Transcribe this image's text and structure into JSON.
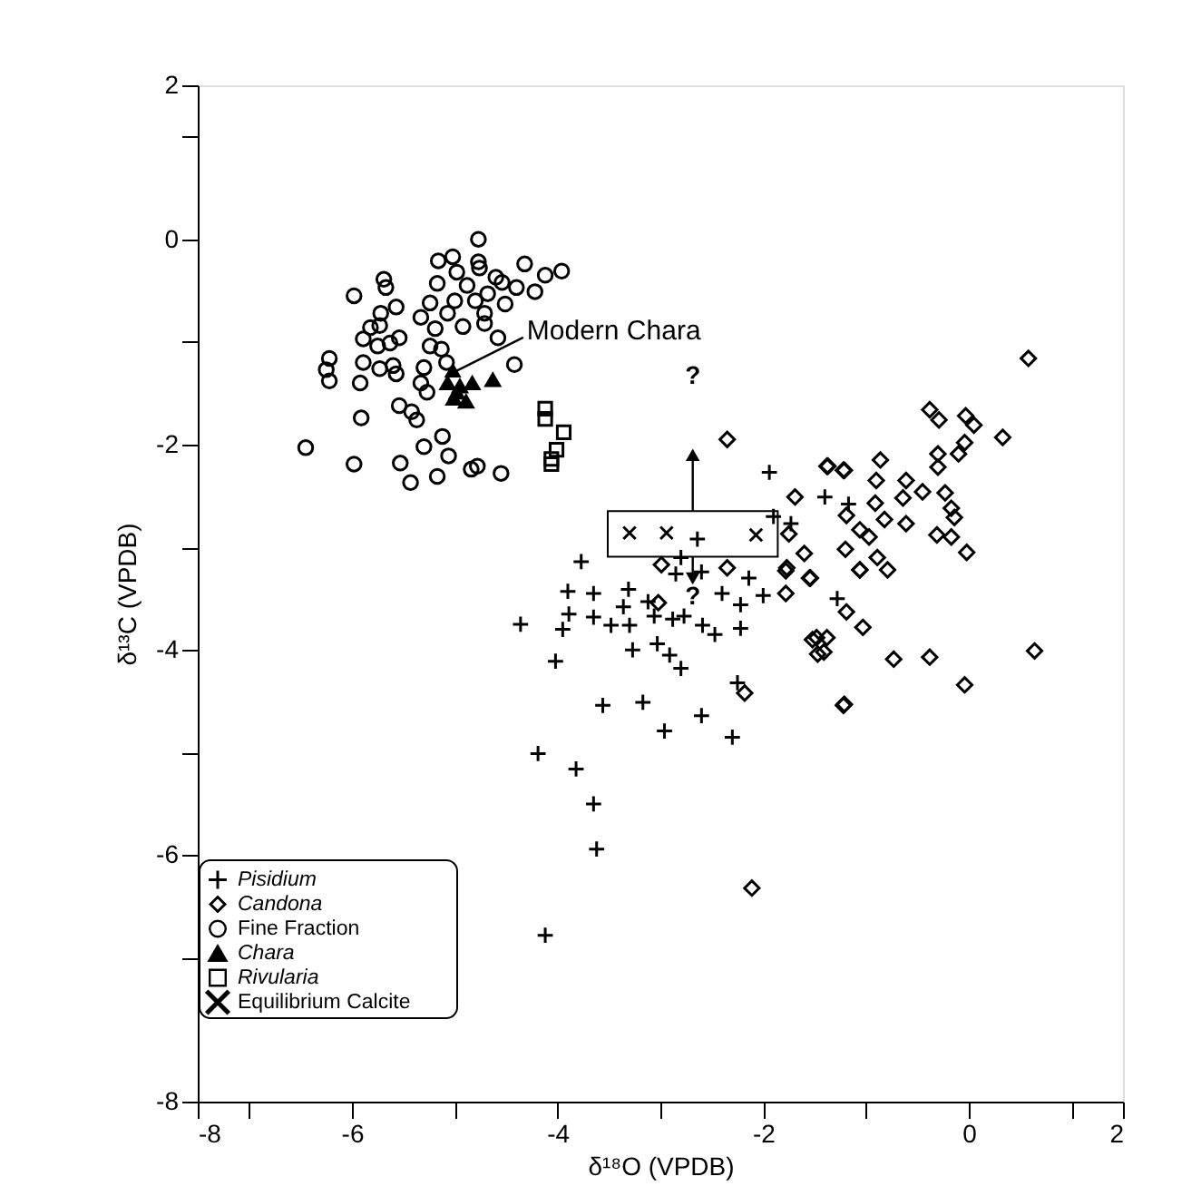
{
  "chart_data": {
    "type": "scatter",
    "xlabel": "δ¹⁸O (VPDB)",
    "ylabel": "δ¹³C (VPDB)",
    "xlim": [
      -7.5,
      1.5
    ],
    "ylim": [
      -8.4,
      1.5
    ],
    "xticks": [
      {
        "value": -7.5,
        "label": "-8"
      },
      {
        "value": -7,
        "label": null
      },
      -6,
      {
        "value": -5,
        "label": null
      },
      -4,
      {
        "value": -3,
        "label": null
      },
      -2,
      {
        "value": -1,
        "label": null
      },
      0,
      {
        "value": 1,
        "label": null
      },
      {
        "value": 1.5,
        "label": "2"
      }
    ],
    "yticks": [
      {
        "value": 1.5,
        "label": "2"
      },
      {
        "value": 1,
        "label": null
      },
      0,
      {
        "value": -1,
        "label": null
      },
      -2,
      {
        "value": -3,
        "label": null
      },
      -4,
      {
        "value": -5,
        "label": null
      },
      -6,
      {
        "value": -7,
        "label": null
      },
      {
        "value": -8.4,
        "label": "-8"
      }
    ],
    "grid": false,
    "legend": "bottom left",
    "annotations": [
      {
        "text": "Modern Chara",
        "x": -5.04,
        "y": -1.31
      },
      "?",
      "?"
    ],
    "series": [
      {
        "name": "Pisidium",
        "color": "#000000",
        "marker": "plus",
        "x": [
          -1.94,
          -1.4,
          -2.64,
          -2.8,
          -3.77,
          -2.85,
          -2.6,
          -2.14,
          -3.9,
          -3.65,
          -3.31,
          -2.0,
          -3.36,
          -3.12,
          -2.4,
          -2.22,
          -3.89,
          -3.95,
          -3.65,
          -3.48,
          -3.3,
          -3.27,
          -3.06,
          -2.88,
          -2.77,
          -2.59,
          -2.47,
          -2.22,
          -3.03,
          -2.91,
          -2.8,
          -4.36,
          -4.02,
          -3.56,
          -3.17,
          -2.6,
          -2.96,
          -2.3,
          -4.19,
          -3.82,
          -3.65,
          -3.62,
          -1.28,
          -2.25,
          -1.9,
          -1.17,
          -1.73,
          -4.12
        ],
        "values": [
          -2.27,
          -2.51,
          -2.92,
          -3.1,
          -3.14,
          -3.26,
          -3.24,
          -3.3,
          -3.43,
          -3.45,
          -3.41,
          -3.47,
          -3.58,
          -3.53,
          -3.45,
          -3.56,
          -3.65,
          -3.8,
          -3.68,
          -3.76,
          -3.76,
          -4.0,
          -3.67,
          -3.7,
          -3.67,
          -3.76,
          -3.85,
          -3.79,
          -3.94,
          -4.05,
          -4.18,
          -3.75,
          -4.11,
          -4.54,
          -4.51,
          -4.64,
          -4.79,
          -4.85,
          -5.01,
          -5.16,
          -5.5,
          -5.94,
          -3.5,
          -4.32,
          -2.7,
          -2.58,
          -2.77,
          -6.78
        ]
      },
      {
        "name": "Candona",
        "color": "#000000",
        "marker": "diamond",
        "x": [
          -2.35,
          -1.38,
          -1.21,
          -1.69,
          -1.75,
          -1.6,
          -1.77,
          -2.99,
          -2.35,
          -3.02,
          -1.55,
          -2.18,
          -1.21,
          -1.48,
          -1.41,
          -1.06,
          0.58,
          -0.38,
          -0.29,
          -0.03,
          0.05,
          0.33,
          -0.04,
          -0.1,
          -0.3,
          -0.3,
          -0.86,
          -1.37,
          -1.22,
          -0.9,
          -0.61,
          -0.45,
          -0.64,
          -0.23,
          -0.17,
          -0.14,
          -0.91,
          -0.82,
          -0.61,
          -1.19,
          -1.06,
          -0.97,
          -0.89,
          -0.79,
          -1.2,
          -1.06,
          -0.31,
          -0.17,
          -0.02,
          -1.78,
          -1.54,
          -1.78,
          -1.19,
          -1.03,
          -1.52,
          -1.38,
          -1.47,
          -0.73,
          -0.38,
          0.64,
          -0.04,
          -1.22,
          -2.11
        ],
        "values": [
          -1.95,
          -2.21,
          -2.25,
          -2.51,
          -2.87,
          -3.06,
          -3.2,
          -3.17,
          -3.2,
          -3.54,
          -3.3,
          -4.42,
          -4.53,
          -3.88,
          -4.02,
          -3.22,
          -1.16,
          -1.66,
          -1.76,
          -1.72,
          -1.81,
          -1.93,
          -1.98,
          -2.09,
          -2.09,
          -2.22,
          -2.15,
          -2.21,
          -2.25,
          -2.35,
          -2.35,
          -2.46,
          -2.52,
          -2.47,
          -2.62,
          -2.71,
          -2.57,
          -2.73,
          -2.77,
          -2.69,
          -2.83,
          -2.9,
          -3.1,
          -3.22,
          -3.02,
          -3.22,
          -2.88,
          -2.9,
          -3.05,
          -3.23,
          -3.3,
          -3.45,
          -3.63,
          -3.78,
          -3.9,
          -3.88,
          -4.04,
          -4.09,
          -4.07,
          -4.01,
          -4.34,
          -4.54,
          -6.32
        ]
      },
      {
        "name": "Fine Fraction",
        "color": "#000000",
        "marker": "circle",
        "x": [
          -4.77,
          -5.16,
          -5.02,
          -4.77,
          -4.76,
          -4.32,
          -3.96,
          -4.12,
          -4.6,
          -4.54,
          -4.4,
          -4.22,
          -5.69,
          -5.67,
          -5.17,
          -4.98,
          -4.88,
          -4.68,
          -5.98,
          -5.0,
          -5.24,
          -4.8,
          -4.51,
          -5.57,
          -5.33,
          -5.72,
          -5.07,
          -4.71,
          -5.73,
          -5.82,
          -5.54,
          -4.92,
          -4.71,
          -5.19,
          -5.89,
          -5.63,
          -5.75,
          -4.58,
          -5.24,
          -5.13,
          -6.22,
          -6.25,
          -6.22,
          -5.89,
          -5.73,
          -5.6,
          -5.57,
          -5.3,
          -5.08,
          -4.42,
          -5.92,
          -5.33,
          -5.27,
          -5.54,
          -5.42,
          -5.37,
          -5.91,
          -5.12,
          -5.3,
          -5.06,
          -6.45,
          -5.98,
          -5.53,
          -5.43,
          -5.17,
          -4.84,
          -4.78,
          -4.55
        ],
        "values": [
          0.0,
          -0.21,
          -0.17,
          -0.22,
          -0.28,
          -0.24,
          -0.31,
          -0.35,
          -0.37,
          -0.42,
          -0.47,
          -0.51,
          -0.39,
          -0.47,
          -0.43,
          -0.32,
          -0.45,
          -0.53,
          -0.55,
          -0.6,
          -0.62,
          -0.6,
          -0.63,
          -0.66,
          -0.76,
          -0.72,
          -0.72,
          -0.72,
          -0.84,
          -0.86,
          -0.96,
          -0.85,
          -0.82,
          -0.87,
          -0.97,
          -1.01,
          -1.04,
          -0.96,
          -1.04,
          -1.07,
          -1.16,
          -1.27,
          -1.38,
          -1.2,
          -1.26,
          -1.23,
          -1.31,
          -1.25,
          -1.2,
          -1.22,
          -1.4,
          -1.4,
          -1.49,
          -1.62,
          -1.68,
          -1.76,
          -1.74,
          -1.92,
          -2.02,
          -2.11,
          -2.03,
          -2.19,
          -2.18,
          -2.37,
          -2.31,
          -2.24,
          -2.21,
          -2.28
        ]
      },
      {
        "name": "Chara",
        "color": "#000000",
        "marker": "triangle",
        "x": [
          -5.07,
          -4.95,
          -4.83,
          -4.63,
          -5.01,
          -4.89,
          -4.98
        ],
        "values": [
          -1.4,
          -1.43,
          -1.4,
          -1.37,
          -1.55,
          -1.58,
          -1.49
        ]
      },
      {
        "name": "Rivularia",
        "color": "#000000",
        "marker": "square",
        "x": [
          -4.12,
          -4.12,
          -3.94,
          -4.01,
          -4.06,
          -4.06
        ],
        "values": [
          -1.65,
          -1.75,
          -1.88,
          -2.05,
          -2.14,
          -2.19
        ]
      },
      {
        "name": "Equilibrium Calcite",
        "color": "#000000",
        "marker": "cross",
        "x": [
          -3.3,
          -2.94,
          -2.07
        ],
        "values": [
          -2.86,
          -2.86,
          -2.88
        ]
      }
    ]
  }
}
